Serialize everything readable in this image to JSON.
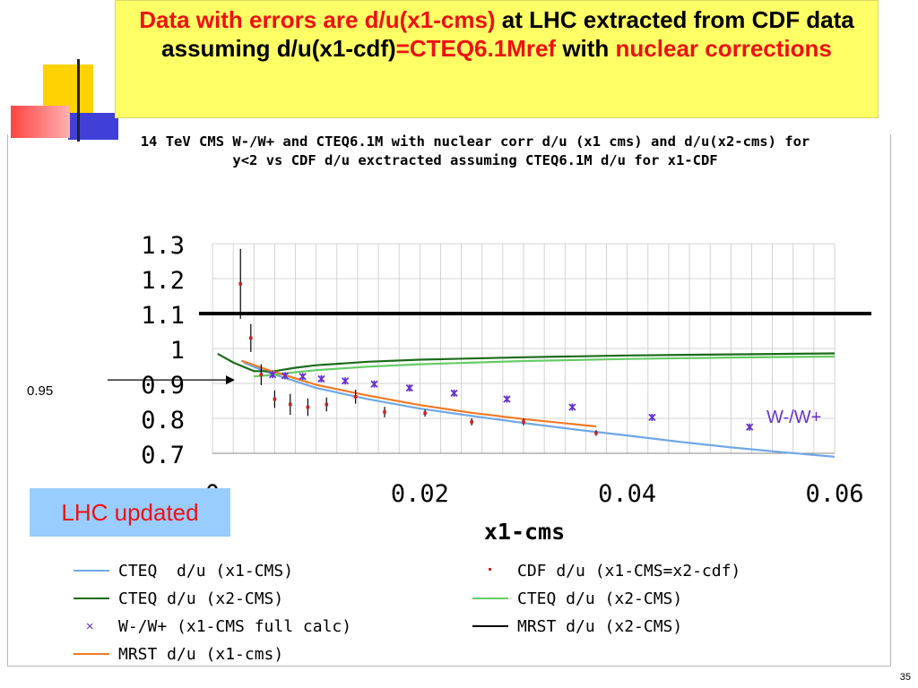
{
  "slide": {
    "title_parts": [
      {
        "text": "Data with errors are d/u(x1-cms)",
        "color": "red"
      },
      {
        "text": " at LHC extracted from CDF data assuming d/u(x1-cdf)",
        "color": "black"
      },
      {
        "text": "=CTEQ6.1Mref",
        "color": "red"
      },
      {
        "text": " with ",
        "color": "black"
      },
      {
        "text": "nuclear corrections",
        "color": "red"
      }
    ],
    "badge": "LHC updated",
    "side_label": "0.95",
    "page_number": "35"
  },
  "chart_data": {
    "type": "scatter",
    "title": "14 TeV CMS W-/W+ and CTEQ6.1M with nuclear corr  d/u (x1 cms) and d/u(x2-cms) for y<2 vs CDF d/u exctracted assuming CTEQ6.1M d/u for x1-CDF",
    "xlabel": "x1-cms",
    "ylabel": "",
    "xlim": [
      0,
      0.06
    ],
    "ylim": [
      0.7,
      1.3
    ],
    "x_ticks": [
      "0",
      "0.02",
      "0.04",
      "0.06"
    ],
    "y_ticks": [
      "0.7",
      "0.8",
      "0.9",
      "1",
      "1.1",
      "1.2",
      "1.3"
    ],
    "grid": true,
    "reference_line": 1.1,
    "annotation": "W-/W+",
    "series": [
      {
        "name": "CTEQ  d/u (x1-CMS)",
        "kind": "line",
        "color": "#6fa8e6",
        "x": [
          0.003,
          0.005,
          0.01,
          0.015,
          0.02,
          0.025,
          0.03,
          0.035,
          0.04,
          0.045,
          0.05,
          0.055,
          0.06
        ],
        "y": [
          0.96,
          0.935,
          0.887,
          0.855,
          0.828,
          0.807,
          0.787,
          0.768,
          0.751,
          0.733,
          0.717,
          0.703,
          0.69
        ]
      },
      {
        "name": "CDF d/u (x1-CMS=x2-cdf)",
        "kind": "points_err",
        "color": "#cc2222",
        "x": [
          0.0027,
          0.0037,
          0.0047,
          0.006,
          0.0075,
          0.0092,
          0.011,
          0.0138,
          0.0166,
          0.0205,
          0.025,
          0.03,
          0.037
        ],
        "y": [
          1.185,
          1.03,
          0.925,
          0.855,
          0.84,
          0.832,
          0.84,
          0.862,
          0.818,
          0.815,
          0.79,
          0.79,
          0.758
        ],
        "err": [
          0.1,
          0.04,
          0.03,
          0.025,
          0.03,
          0.025,
          0.02,
          0.02,
          0.015,
          0.01,
          0.01,
          0.01,
          0.008
        ]
      },
      {
        "name": "CTEQ d/u (x2-CMS)",
        "kind": "line",
        "color": "#1a6b1a",
        "x": [
          0.0005,
          0.002,
          0.004,
          0.006,
          0.008,
          0.01,
          0.015,
          0.02,
          0.03,
          0.04,
          0.05,
          0.06
        ],
        "y": [
          0.985,
          0.96,
          0.935,
          0.935,
          0.945,
          0.952,
          0.962,
          0.968,
          0.975,
          0.98,
          0.983,
          0.986
        ]
      },
      {
        "name": "CTEQ d/u (x2-CMS)",
        "kind": "line",
        "color": "#66cc66",
        "x": [
          0.004,
          0.006,
          0.008,
          0.01,
          0.015,
          0.02,
          0.03,
          0.04,
          0.05,
          0.06
        ],
        "y": [
          0.92,
          0.925,
          0.932,
          0.938,
          0.948,
          0.955,
          0.964,
          0.97,
          0.974,
          0.977
        ]
      },
      {
        "name": "W-/W+ (x1-CMS full calc)",
        "kind": "cross",
        "color": "#6633cc",
        "x": [
          0.0058,
          0.007,
          0.0087,
          0.0105,
          0.0128,
          0.0156,
          0.019,
          0.0233,
          0.0284,
          0.0347,
          0.0424,
          0.0518
        ],
        "y": [
          0.925,
          0.922,
          0.92,
          0.913,
          0.907,
          0.898,
          0.887,
          0.872,
          0.855,
          0.832,
          0.803,
          0.775
        ]
      },
      {
        "name": "MRST d/u (x2-CMS)",
        "kind": "line",
        "color": "#000000",
        "x": [],
        "y": []
      },
      {
        "name": "MRST d/u (x1-cms)",
        "kind": "line",
        "color": "#f07a28",
        "x": [
          0.0028,
          0.005,
          0.01,
          0.015,
          0.02,
          0.025,
          0.03,
          0.037
        ],
        "y": [
          0.965,
          0.942,
          0.896,
          0.865,
          0.838,
          0.816,
          0.798,
          0.777
        ]
      }
    ]
  }
}
